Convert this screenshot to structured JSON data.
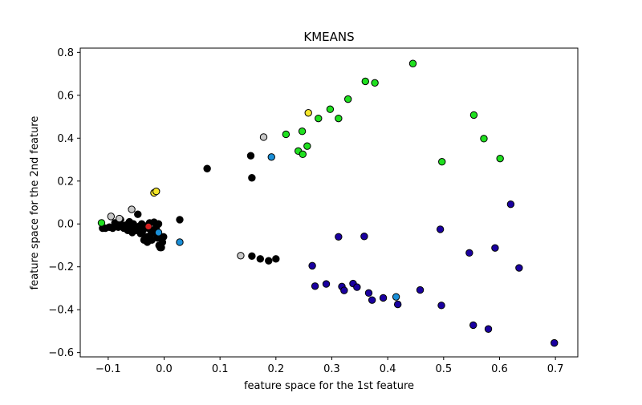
{
  "chart_data": {
    "type": "scatter",
    "title": "KMEANS",
    "xlabel": "feature space for the 1st feature",
    "ylabel": "feature space for the 2nd feature",
    "xlim": [
      -0.15,
      0.74
    ],
    "ylim": [
      -0.62,
      0.82
    ],
    "xticks": [
      -0.1,
      0.0,
      0.1,
      0.2,
      0.3,
      0.4,
      0.5,
      0.6,
      0.7
    ],
    "xtick_labels": [
      "−0.1",
      "0.0",
      "0.1",
      "0.2",
      "0.3",
      "0.4",
      "0.5",
      "0.6",
      "0.7"
    ],
    "yticks": [
      -0.6,
      -0.4,
      -0.2,
      0.0,
      0.2,
      0.4,
      0.6,
      0.8
    ],
    "ytick_labels": [
      "−0.6",
      "−0.4",
      "−0.2",
      "0.0",
      "0.2",
      "0.4",
      "0.6",
      "0.8"
    ],
    "grid": false,
    "legend": "none",
    "series": [
      {
        "color": "#000000",
        "points": [
          [
            -0.11,
            -0.02
          ],
          [
            -0.105,
            -0.02
          ],
          [
            -0.098,
            -0.015
          ],
          [
            -0.092,
            -0.02
          ],
          [
            -0.088,
            0.005
          ],
          [
            -0.085,
            -0.005
          ],
          [
            -0.082,
            -0.015
          ],
          [
            -0.078,
            0.02
          ],
          [
            -0.075,
            -0.008
          ],
          [
            -0.072,
            -0.02
          ],
          [
            -0.068,
            -0.005
          ],
          [
            -0.065,
            -0.03
          ],
          [
            -0.062,
            0.01
          ],
          [
            -0.06,
            -0.015
          ],
          [
            -0.057,
            -0.04
          ],
          [
            -0.055,
            0.0
          ],
          [
            -0.052,
            -0.02
          ],
          [
            -0.05,
            -0.03
          ],
          [
            -0.047,
            0.045
          ],
          [
            -0.045,
            -0.012
          ],
          [
            -0.042,
            -0.045
          ],
          [
            -0.04,
            0.0
          ],
          [
            -0.038,
            -0.03
          ],
          [
            -0.036,
            -0.075
          ],
          [
            -0.034,
            -0.01
          ],
          [
            -0.032,
            -0.06
          ],
          [
            -0.03,
            -0.085
          ],
          [
            -0.028,
            -0.02
          ],
          [
            -0.026,
            0.005
          ],
          [
            -0.024,
            -0.05
          ],
          [
            -0.022,
            -0.075
          ],
          [
            -0.02,
            -0.03
          ],
          [
            -0.018,
            0.008
          ],
          [
            -0.016,
            -0.04
          ],
          [
            -0.014,
            -0.015
          ],
          [
            -0.012,
            -0.065
          ],
          [
            -0.01,
            0.0
          ],
          [
            -0.009,
            -0.1
          ],
          [
            -0.007,
            -0.11
          ],
          [
            -0.005,
            -0.11
          ],
          [
            -0.003,
            -0.085
          ],
          [
            -0.001,
            -0.06
          ],
          [
            0.028,
            0.02
          ],
          [
            0.077,
            0.258
          ],
          [
            0.155,
            0.318
          ],
          [
            0.157,
            0.215
          ],
          [
            0.157,
            -0.15
          ],
          [
            0.172,
            -0.163
          ],
          [
            0.187,
            -0.172
          ],
          [
            0.2,
            -0.163
          ]
        ]
      },
      {
        "color": "#1a00a0",
        "points": [
          [
            0.265,
            -0.195
          ],
          [
            0.27,
            -0.29
          ],
          [
            0.29,
            -0.28
          ],
          [
            0.312,
            -0.06
          ],
          [
            0.318,
            -0.292
          ],
          [
            0.322,
            -0.31
          ],
          [
            0.338,
            -0.278
          ],
          [
            0.345,
            -0.295
          ],
          [
            0.358,
            -0.058
          ],
          [
            0.366,
            -0.322
          ],
          [
            0.372,
            -0.355
          ],
          [
            0.392,
            -0.345
          ],
          [
            0.418,
            -0.375
          ],
          [
            0.458,
            -0.308
          ],
          [
            0.494,
            -0.025
          ],
          [
            0.496,
            -0.38
          ],
          [
            0.546,
            -0.135
          ],
          [
            0.553,
            -0.472
          ],
          [
            0.58,
            -0.49
          ],
          [
            0.592,
            -0.112
          ],
          [
            0.62,
            0.092
          ],
          [
            0.635,
            -0.205
          ],
          [
            0.698,
            -0.555
          ]
        ]
      },
      {
        "color": "#1fe01f",
        "points": [
          [
            -0.112,
            0.005
          ],
          [
            0.218,
            0.418
          ],
          [
            0.24,
            0.34
          ],
          [
            0.247,
            0.432
          ],
          [
            0.248,
            0.325
          ],
          [
            0.256,
            0.363
          ],
          [
            0.276,
            0.492
          ],
          [
            0.297,
            0.535
          ],
          [
            0.312,
            0.492
          ],
          [
            0.329,
            0.582
          ],
          [
            0.36,
            0.665
          ],
          [
            0.377,
            0.658
          ],
          [
            0.445,
            0.748
          ],
          [
            0.497,
            0.29
          ],
          [
            0.554,
            0.508
          ],
          [
            0.572,
            0.398
          ],
          [
            0.601,
            0.305
          ]
        ]
      },
      {
        "color": "#1a8fd8",
        "points": [
          [
            -0.01,
            -0.04
          ],
          [
            0.028,
            -0.085
          ],
          [
            0.192,
            0.312
          ],
          [
            0.415,
            -0.34
          ]
        ]
      },
      {
        "color": "#c8c8c8",
        "points": [
          [
            -0.095,
            0.035
          ],
          [
            -0.08,
            0.025
          ],
          [
            -0.058,
            0.068
          ],
          [
            0.137,
            -0.148
          ],
          [
            0.178,
            0.405
          ]
        ]
      },
      {
        "color": "#f5e62a",
        "points": [
          [
            -0.018,
            0.145
          ],
          [
            -0.014,
            0.152
          ],
          [
            0.258,
            0.518
          ]
        ]
      },
      {
        "color": "#d62020",
        "points": [
          [
            -0.028,
            -0.012
          ]
        ]
      }
    ]
  }
}
